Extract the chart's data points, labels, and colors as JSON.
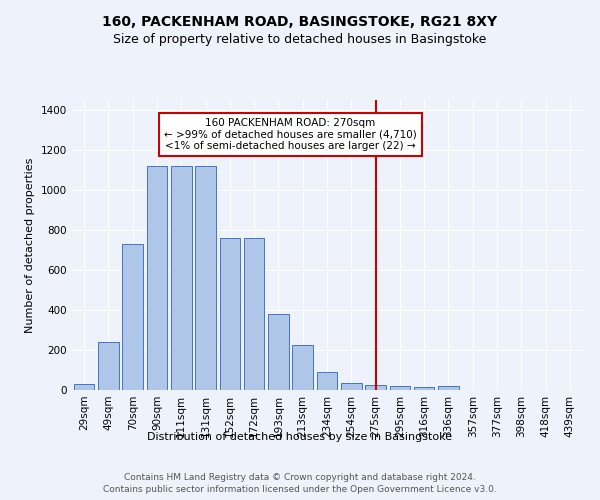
{
  "title": "160, PACKENHAM ROAD, BASINGSTOKE, RG21 8XY",
  "subtitle": "Size of property relative to detached houses in Basingstoke",
  "xlabel": "Distribution of detached houses by size in Basingstoke",
  "ylabel": "Number of detached properties",
  "footer_line1": "Contains HM Land Registry data © Crown copyright and database right 2024.",
  "footer_line2": "Contains public sector information licensed under the Open Government Licence v3.0.",
  "categories": [
    "29sqm",
    "49sqm",
    "70sqm",
    "90sqm",
    "111sqm",
    "131sqm",
    "152sqm",
    "172sqm",
    "193sqm",
    "213sqm",
    "234sqm",
    "254sqm",
    "275sqm",
    "295sqm",
    "316sqm",
    "336sqm",
    "357sqm",
    "377sqm",
    "398sqm",
    "418sqm",
    "439sqm"
  ],
  "values": [
    30,
    240,
    730,
    1120,
    1120,
    1120,
    760,
    760,
    380,
    225,
    90,
    35,
    25,
    20,
    15,
    20,
    0,
    0,
    0,
    0,
    0
  ],
  "bar_color": "#aec6e8",
  "bar_edge_color": "#4472c4",
  "vline_x_idx": 12,
  "vline_color": "#cc0000",
  "annotation_title": "160 PACKENHAM ROAD: 270sqm",
  "annotation_line1": "← >99% of detached houses are smaller (4,710)",
  "annotation_line2": "<1% of semi-detached houses are larger (22) →",
  "annotation_box_color": "#cc0000",
  "ylim": [
    0,
    1450
  ],
  "yticks": [
    0,
    200,
    400,
    600,
    800,
    1000,
    1200,
    1400
  ],
  "background_color": "#eef2fa",
  "title_fontsize": 10,
  "subtitle_fontsize": 9,
  "axis_label_fontsize": 8,
  "tick_fontsize": 7.5,
  "footer_fontsize": 6.5,
  "annotation_fontsize": 7.5
}
